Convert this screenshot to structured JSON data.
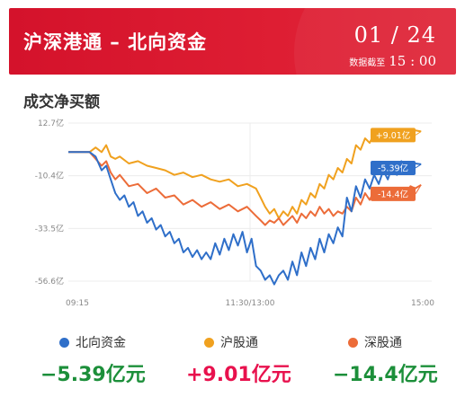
{
  "header": {
    "title": "沪深港通 – 北向资金",
    "date": "01 / 24",
    "time_label": "数据截至",
    "time": "15 : 00"
  },
  "section_title": "成交净买额",
  "colors": {
    "north": "#2f6fc9",
    "sh": "#f0a11f",
    "sz": "#ec6c39",
    "positive": "#e8114d",
    "negative": "#1c8f3a",
    "header": "#d4122b"
  },
  "chart_data": {
    "type": "line",
    "x_ticks": [
      "09:15",
      "11:30/13:00",
      "15:00"
    ],
    "y_ticks": [
      "12.7亿",
      "-10.4亿",
      "-33.5亿",
      "-56.6亿"
    ],
    "y_tick_values": [
      12.7,
      -10.4,
      -33.5,
      -56.6
    ],
    "ylim": [
      -56.6,
      12.7
    ],
    "x_range_minutes": [
      0,
      240
    ],
    "series": [
      {
        "key": "north",
        "name": "北向资金",
        "final_label": "-5.39亿",
        "points": [
          [
            0,
            0
          ],
          [
            8,
            0
          ],
          [
            14,
            0
          ],
          [
            18,
            -2
          ],
          [
            22,
            -8
          ],
          [
            25,
            -6
          ],
          [
            28,
            -12
          ],
          [
            31,
            -18
          ],
          [
            34,
            -21
          ],
          [
            37,
            -19
          ],
          [
            40,
            -24
          ],
          [
            43,
            -22
          ],
          [
            46,
            -28
          ],
          [
            49,
            -26
          ],
          [
            52,
            -31
          ],
          [
            55,
            -29
          ],
          [
            58,
            -34
          ],
          [
            61,
            -32
          ],
          [
            64,
            -37
          ],
          [
            67,
            -35
          ],
          [
            70,
            -40
          ],
          [
            73,
            -38
          ],
          [
            76,
            -44
          ],
          [
            79,
            -42
          ],
          [
            82,
            -46
          ],
          [
            85,
            -43
          ],
          [
            88,
            -47
          ],
          [
            91,
            -44
          ],
          [
            94,
            -47
          ],
          [
            97,
            -40
          ],
          [
            100,
            -45
          ],
          [
            103,
            -38
          ],
          [
            106,
            -43
          ],
          [
            109,
            -36
          ],
          [
            112,
            -41
          ],
          [
            115,
            -35
          ],
          [
            118,
            -44
          ],
          [
            121,
            -38
          ],
          [
            124,
            -50
          ],
          [
            127,
            -52
          ],
          [
            130,
            -56
          ],
          [
            133,
            -54
          ],
          [
            136,
            -58
          ],
          [
            139,
            -54
          ],
          [
            142,
            -52
          ],
          [
            145,
            -56
          ],
          [
            148,
            -48
          ],
          [
            151,
            -54
          ],
          [
            154,
            -44
          ],
          [
            157,
            -50
          ],
          [
            160,
            -42
          ],
          [
            163,
            -47
          ],
          [
            166,
            -38
          ],
          [
            169,
            -44
          ],
          [
            172,
            -36
          ],
          [
            175,
            -40
          ],
          [
            178,
            -33
          ],
          [
            181,
            -37
          ],
          [
            184,
            -20
          ],
          [
            187,
            -26
          ],
          [
            190,
            -15
          ],
          [
            193,
            -20
          ],
          [
            196,
            -12
          ],
          [
            199,
            -16
          ],
          [
            202,
            -10
          ],
          [
            205,
            -14
          ],
          [
            208,
            -8
          ],
          [
            211,
            -12
          ],
          [
            214,
            -6
          ],
          [
            217,
            -10
          ],
          [
            220,
            -4
          ],
          [
            223,
            -8
          ],
          [
            226,
            -6
          ],
          [
            229,
            -5
          ],
          [
            233,
            -5.39
          ]
        ]
      },
      {
        "key": "sh",
        "name": "沪股通",
        "final_label": "+9.01亿",
        "points": [
          [
            0,
            0
          ],
          [
            14,
            0
          ],
          [
            18,
            2
          ],
          [
            22,
            0
          ],
          [
            25,
            3
          ],
          [
            28,
            -2
          ],
          [
            31,
            -3
          ],
          [
            34,
            -2
          ],
          [
            40,
            -5
          ],
          [
            46,
            -4
          ],
          [
            52,
            -6
          ],
          [
            58,
            -7
          ],
          [
            64,
            -8
          ],
          [
            70,
            -10
          ],
          [
            76,
            -9
          ],
          [
            82,
            -11
          ],
          [
            88,
            -10
          ],
          [
            94,
            -12
          ],
          [
            100,
            -13
          ],
          [
            106,
            -12
          ],
          [
            112,
            -15
          ],
          [
            118,
            -14
          ],
          [
            124,
            -16
          ],
          [
            127,
            -20
          ],
          [
            130,
            -24
          ],
          [
            133,
            -27
          ],
          [
            136,
            -25
          ],
          [
            139,
            -29
          ],
          [
            142,
            -26
          ],
          [
            145,
            -28
          ],
          [
            148,
            -24
          ],
          [
            151,
            -27
          ],
          [
            154,
            -21
          ],
          [
            157,
            -23
          ],
          [
            160,
            -18
          ],
          [
            163,
            -20
          ],
          [
            166,
            -14
          ],
          [
            169,
            -16
          ],
          [
            172,
            -10
          ],
          [
            175,
            -12
          ],
          [
            178,
            -7
          ],
          [
            181,
            -9
          ],
          [
            184,
            -3
          ],
          [
            187,
            -5
          ],
          [
            190,
            3
          ],
          [
            193,
            1
          ],
          [
            196,
            6
          ],
          [
            199,
            4
          ],
          [
            202,
            8
          ],
          [
            205,
            6
          ],
          [
            208,
            9
          ],
          [
            211,
            7
          ],
          [
            214,
            9
          ],
          [
            217,
            8
          ],
          [
            220,
            9
          ],
          [
            223,
            8.5
          ],
          [
            226,
            10
          ],
          [
            229,
            9.5
          ],
          [
            233,
            9.01
          ]
        ]
      },
      {
        "key": "sz",
        "name": "深股通",
        "final_label": "-14.4亿",
        "points": [
          [
            0,
            0
          ],
          [
            14,
            0
          ],
          [
            18,
            -3
          ],
          [
            22,
            -6
          ],
          [
            25,
            -4
          ],
          [
            28,
            -9
          ],
          [
            31,
            -12
          ],
          [
            34,
            -10
          ],
          [
            40,
            -15
          ],
          [
            46,
            -14
          ],
          [
            52,
            -18
          ],
          [
            58,
            -16
          ],
          [
            64,
            -20
          ],
          [
            70,
            -19
          ],
          [
            76,
            -23
          ],
          [
            82,
            -21
          ],
          [
            88,
            -24
          ],
          [
            94,
            -22
          ],
          [
            100,
            -25
          ],
          [
            106,
            -23
          ],
          [
            112,
            -26
          ],
          [
            118,
            -24
          ],
          [
            124,
            -28
          ],
          [
            127,
            -30
          ],
          [
            130,
            -32
          ],
          [
            133,
            -30
          ],
          [
            136,
            -31
          ],
          [
            139,
            -29
          ],
          [
            142,
            -32
          ],
          [
            145,
            -30
          ],
          [
            148,
            -28
          ],
          [
            151,
            -31
          ],
          [
            154,
            -27
          ],
          [
            157,
            -29
          ],
          [
            160,
            -26
          ],
          [
            163,
            -28
          ],
          [
            166,
            -24
          ],
          [
            169,
            -27
          ],
          [
            172,
            -25
          ],
          [
            175,
            -28
          ],
          [
            178,
            -26
          ],
          [
            181,
            -27
          ],
          [
            184,
            -24
          ],
          [
            187,
            -26
          ],
          [
            190,
            -20
          ],
          [
            193,
            -23
          ],
          [
            196,
            -18
          ],
          [
            199,
            -21
          ],
          [
            202,
            -17
          ],
          [
            205,
            -20
          ],
          [
            208,
            -18
          ],
          [
            211,
            -21
          ],
          [
            214,
            -17
          ],
          [
            217,
            -20
          ],
          [
            220,
            -16
          ],
          [
            223,
            -18
          ],
          [
            226,
            -15
          ],
          [
            229,
            -16
          ],
          [
            233,
            -14.4
          ]
        ]
      }
    ]
  },
  "legend": [
    {
      "key": "north",
      "label": "北向资金",
      "value": "−5.39亿元"
    },
    {
      "key": "sh",
      "label": "沪股通",
      "value": "+9.01亿元"
    },
    {
      "key": "sz",
      "label": "深股通",
      "value": "−14.4亿元"
    }
  ]
}
